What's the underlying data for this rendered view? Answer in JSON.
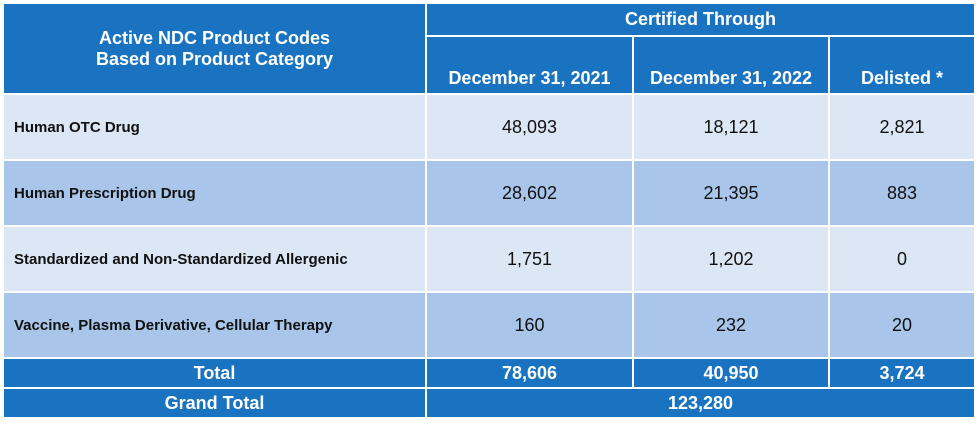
{
  "header": {
    "title_lines": [
      "Active NDC Product Codes",
      "Based on Product Category"
    ],
    "group": "Certified Through",
    "columns": [
      "December 31, 2021",
      "December 31, 2022",
      "Delisted *"
    ]
  },
  "table": {
    "rows": [
      [
        "Human OTC Drug",
        "48,093",
        "18,121",
        "2,821"
      ],
      [
        "Human Prescription Drug",
        "28,602",
        "21,395",
        "883"
      ],
      [
        "Standardized and Non-Standardized Allergenic",
        "1,751",
        "1,202",
        "0"
      ],
      [
        "Vaccine, Plasma Derivative, Cellular Therapy",
        "160",
        "232",
        "20"
      ]
    ],
    "total": [
      "Total",
      "78,606",
      "40,950",
      "3,724"
    ],
    "grand_total": [
      "Grand Total",
      "123,280"
    ]
  }
}
